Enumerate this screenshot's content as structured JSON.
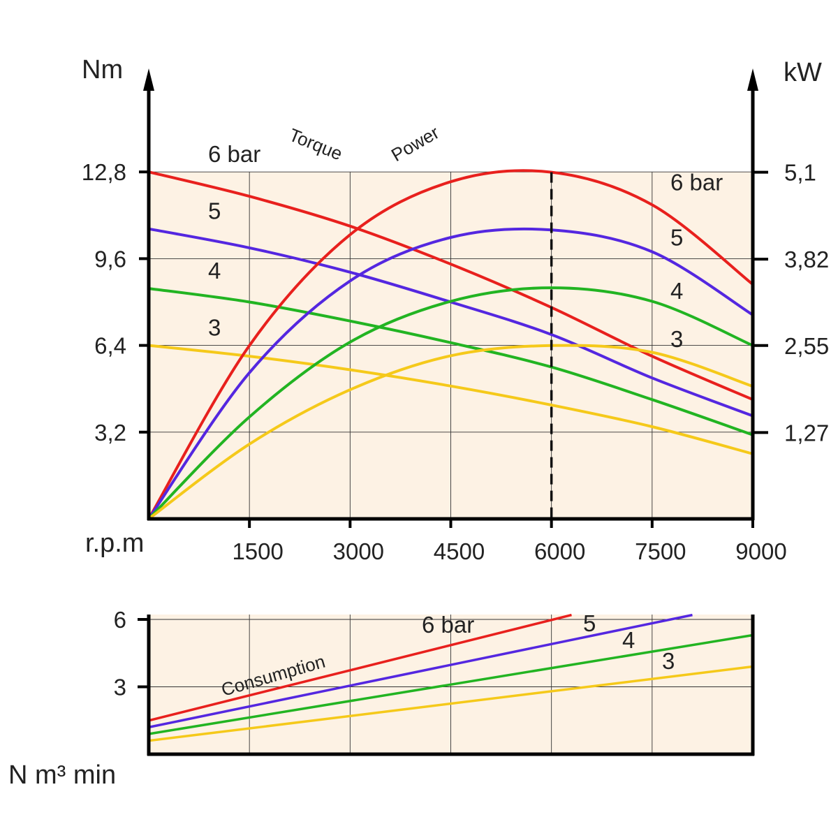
{
  "chart_data": [
    {
      "type": "line",
      "x_unit_label": "r.p.m",
      "y_left_unit": "Nm",
      "y_right_unit": "kW",
      "x_ticks": [
        "1500",
        "3000",
        "4500",
        "6000",
        "7500",
        "9000"
      ],
      "x_range": [
        0,
        9000
      ],
      "y_left_ticks": [
        "3,2",
        "6,4",
        "9,6",
        "12,8"
      ],
      "y_left_range": [
        0,
        16
      ],
      "y_right_ticks": [
        "1,27",
        "2,55",
        "3,82",
        "5,1"
      ],
      "y_right_tick_values": [
        1.27,
        2.55,
        3.82,
        5.1
      ],
      "y_right_range": [
        0,
        6.38
      ],
      "grid": true,
      "background_color": "#fdf2e4",
      "reference_line_x": 6000,
      "annotations": [
        "Torque",
        "Power"
      ],
      "torque_series": [
        {
          "label": "6 bar",
          "color": "#e8201d",
          "x": [
            0,
            1500,
            3000,
            4500,
            6000,
            7500,
            9000
          ],
          "y": [
            12.8,
            11.9,
            10.8,
            9.4,
            7.8,
            6.0,
            4.4
          ]
        },
        {
          "label": "5",
          "color": "#5427e0",
          "x": [
            0,
            1500,
            3000,
            4500,
            6000,
            7500,
            9000
          ],
          "y": [
            10.7,
            10.0,
            9.1,
            8.0,
            6.8,
            5.2,
            3.8
          ]
        },
        {
          "label": "4",
          "color": "#22b422",
          "x": [
            0,
            1500,
            3000,
            4500,
            6000,
            7500,
            9000
          ],
          "y": [
            8.5,
            8.0,
            7.3,
            6.5,
            5.6,
            4.4,
            3.1
          ]
        },
        {
          "label": "3",
          "color": "#f5c91a",
          "x": [
            0,
            1500,
            3000,
            4500,
            6000,
            7500,
            9000
          ],
          "y": [
            6.4,
            6.0,
            5.5,
            4.9,
            4.2,
            3.4,
            2.4
          ]
        }
      ],
      "power_series": [
        {
          "label": "6 bar",
          "color": "#e8201d",
          "x": [
            0,
            1500,
            3000,
            4500,
            6000,
            7500,
            9000
          ],
          "y": [
            0,
            2.55,
            4.18,
            4.96,
            5.1,
            4.62,
            3.45
          ]
        },
        {
          "label": "5",
          "color": "#5427e0",
          "x": [
            0,
            1500,
            3000,
            4500,
            6000,
            7500,
            9000
          ],
          "y": [
            0,
            2.15,
            3.5,
            4.14,
            4.25,
            3.93,
            3.0
          ]
        },
        {
          "label": "4",
          "color": "#22b422",
          "x": [
            0,
            1500,
            3000,
            4500,
            6000,
            7500,
            9000
          ],
          "y": [
            0,
            1.5,
            2.6,
            3.2,
            3.4,
            3.2,
            2.55
          ]
        },
        {
          "label": "3",
          "color": "#f5c91a",
          "x": [
            0,
            1500,
            3000,
            4500,
            6000,
            7500,
            9000
          ],
          "y": [
            0,
            1.1,
            1.9,
            2.4,
            2.55,
            2.45,
            1.95
          ]
        }
      ]
    },
    {
      "type": "line",
      "y_unit_label": "N m³ min",
      "y_ticks": [
        "3",
        "6"
      ],
      "y_tick_values": [
        3,
        6
      ],
      "y_range": [
        0,
        6
      ],
      "x_range": [
        0,
        9000
      ],
      "grid": true,
      "background_color": "#fdf2e4",
      "annotations": [
        "Consumption"
      ],
      "series": [
        {
          "label": "6 bar",
          "color": "#e8201d",
          "x": [
            0,
            6300
          ],
          "y": [
            1.5,
            6.2
          ]
        },
        {
          "label": "5",
          "color": "#5427e0",
          "x": [
            0,
            8100
          ],
          "y": [
            1.2,
            6.2
          ]
        },
        {
          "label": "4",
          "color": "#22b422",
          "x": [
            0,
            9000
          ],
          "y": [
            0.9,
            5.3
          ]
        },
        {
          "label": "3",
          "color": "#f5c91a",
          "x": [
            0,
            9000
          ],
          "y": [
            0.6,
            3.9
          ]
        }
      ]
    }
  ]
}
